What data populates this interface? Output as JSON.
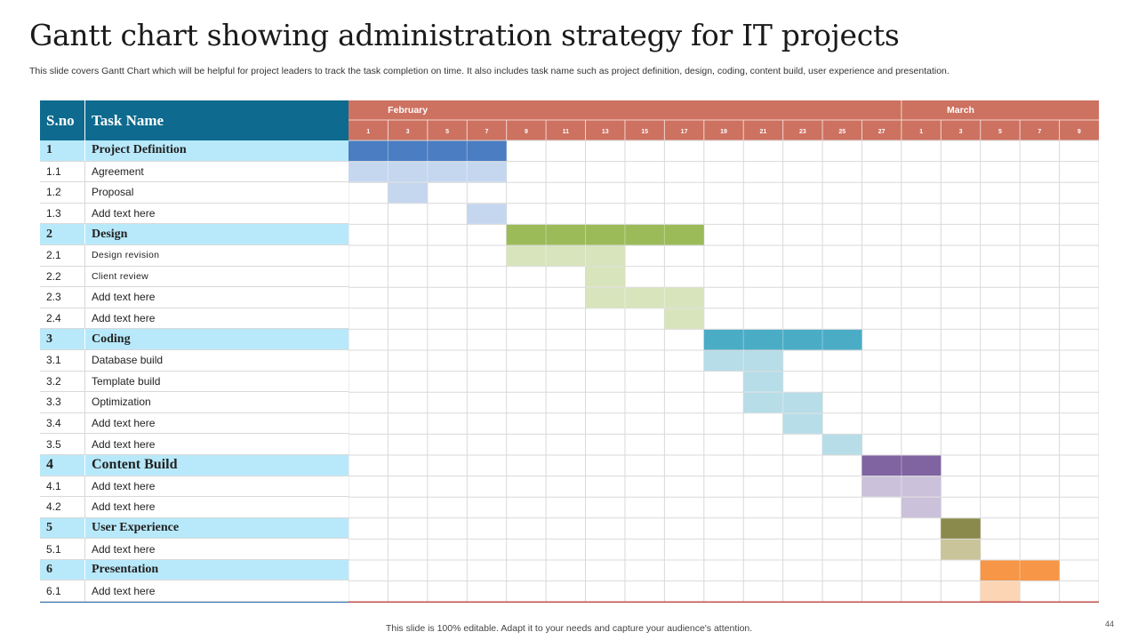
{
  "slide": {
    "title": "Gantt chart showing administration strategy for IT projects",
    "subtitle": "This slide covers Gantt Chart which will be helpful for project leaders to track the task completion on time. It also includes task name such as project definition, design, coding, content build, user experience and presentation.",
    "footer": "This slide is 100% editable. Adapt it to your needs and capture your audience's attention.",
    "page_number": "44"
  },
  "table": {
    "col_sno": "S.no",
    "col_task": "Task Name"
  },
  "chart_data": {
    "type": "gantt",
    "header_color": "#cd7160",
    "months": [
      {
        "name": "February",
        "start_col": 0,
        "span": 14
      },
      {
        "name": "March",
        "start_col": 14,
        "span": 5
      }
    ],
    "days": [
      "1",
      "3",
      "5",
      "7",
      "9",
      "11",
      "13",
      "15",
      "17",
      "19",
      "21",
      "23",
      "25",
      "27",
      "1",
      "3",
      "5",
      "7",
      "9"
    ],
    "rows": [
      {
        "sno": "1",
        "name": "Project  Definition",
        "kind": "phase",
        "start": 0,
        "span": 4,
        "color": "#4a7dc2"
      },
      {
        "sno": "1.1",
        "name": "Agreement",
        "kind": "task",
        "start": 0,
        "span": 4,
        "color": "#c5d7ee"
      },
      {
        "sno": "1.2",
        "name": "Proposal",
        "kind": "task",
        "start": 1,
        "span": 1,
        "color": "#c5d7ee"
      },
      {
        "sno": "1.3",
        "name": "Add text here",
        "kind": "task",
        "start": 3,
        "span": 1,
        "color": "#c5d7ee"
      },
      {
        "sno": "2",
        "name": "Design",
        "kind": "phase",
        "start": 4,
        "span": 5,
        "color": "#9bbb59"
      },
      {
        "sno": "2.1",
        "name": "Design revision",
        "kind": "task",
        "small": true,
        "start": 4,
        "span": 3,
        "color": "#d8e4bc"
      },
      {
        "sno": "2.2",
        "name": "Client review",
        "kind": "task",
        "small": true,
        "start": 6,
        "span": 1,
        "color": "#d8e4bc"
      },
      {
        "sno": "2.3",
        "name": "Add text here",
        "kind": "task",
        "start": 6,
        "span": 3,
        "color": "#d8e4bc"
      },
      {
        "sno": "2.4",
        "name": "Add text here",
        "kind": "task",
        "start": 8,
        "span": 1,
        "color": "#d8e4bc"
      },
      {
        "sno": "3",
        "name": "Coding",
        "kind": "phase",
        "start": 9,
        "span": 4,
        "color": "#4bacc6"
      },
      {
        "sno": "3.1",
        "name": "Database build",
        "kind": "task",
        "start": 9,
        "span": 2,
        "color": "#b7dde8"
      },
      {
        "sno": "3.2",
        "name": "Template  build",
        "kind": "task",
        "start": 10,
        "span": 1,
        "color": "#b7dde8"
      },
      {
        "sno": "3.3",
        "name": "Optimization",
        "kind": "task",
        "start": 10,
        "span": 2,
        "color": "#b7dde8"
      },
      {
        "sno": "3.4",
        "name": "Add text here",
        "kind": "task",
        "start": 11,
        "span": 1,
        "color": "#b7dde8"
      },
      {
        "sno": "3.5",
        "name": "Add text here",
        "kind": "task",
        "start": 12,
        "span": 1,
        "color": "#b7dde8"
      },
      {
        "sno": "4",
        "name": "Content Build",
        "kind": "phase",
        "big": true,
        "start": 13,
        "span": 2,
        "color": "#8064a2"
      },
      {
        "sno": "4.1",
        "name": "Add text here",
        "kind": "task",
        "start": 13,
        "span": 2,
        "color": "#ccc1da"
      },
      {
        "sno": "4.2",
        "name": "Add text here",
        "kind": "task",
        "start": 14,
        "span": 1,
        "color": "#ccc1da"
      },
      {
        "sno": "5",
        "name": "User Experience",
        "kind": "phase",
        "start": 15,
        "span": 1,
        "color": "#8a8a4c"
      },
      {
        "sno": "5.1",
        "name": "Add text here",
        "kind": "task",
        "start": 15,
        "span": 1,
        "color": "#c9c49a"
      },
      {
        "sno": "6",
        "name": "Presentation",
        "kind": "phase",
        "start": 16,
        "span": 2,
        "color": "#f79646"
      },
      {
        "sno": "6.1",
        "name": "Add text here",
        "kind": "task",
        "start": 16,
        "span": 1,
        "color": "#fcd5b4"
      }
    ]
  }
}
